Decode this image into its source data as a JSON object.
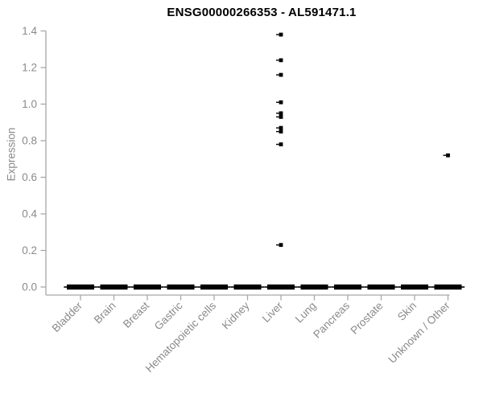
{
  "chart_data": {
    "type": "scatter",
    "title": "ENSG00000266353 - AL591471.1",
    "ylabel": "Expression",
    "xlabel": "",
    "ylim": [
      0.0,
      1.4
    ],
    "yticks": [
      "0.0",
      "0.2",
      "0.4",
      "0.6",
      "0.8",
      "1.0",
      "1.2",
      "1.4"
    ],
    "grid": false,
    "legend": "none",
    "categories": [
      "Bladder",
      "Brain",
      "Breast",
      "Gastric",
      "Hematopoietic cells",
      "Kidney",
      "Liver",
      "Lung",
      "Pancreas",
      "Prostate",
      "Skin",
      "Unknown / Other"
    ],
    "baseline": {
      "value": 0.0,
      "style": "thick black dash at 0.0 for every category"
    },
    "points": [
      {
        "category": "Liver",
        "values": [
          1.38,
          1.24,
          1.16,
          1.01,
          0.95,
          0.93,
          0.87,
          0.85,
          0.78,
          0.23
        ]
      },
      {
        "category": "Unknown / Other",
        "values": [
          0.72
        ]
      }
    ],
    "colors": {
      "points": "#000000",
      "axis_lines": "#a8a8a8",
      "tick_text": "#8a8a8a",
      "title_text": "#000000"
    }
  }
}
